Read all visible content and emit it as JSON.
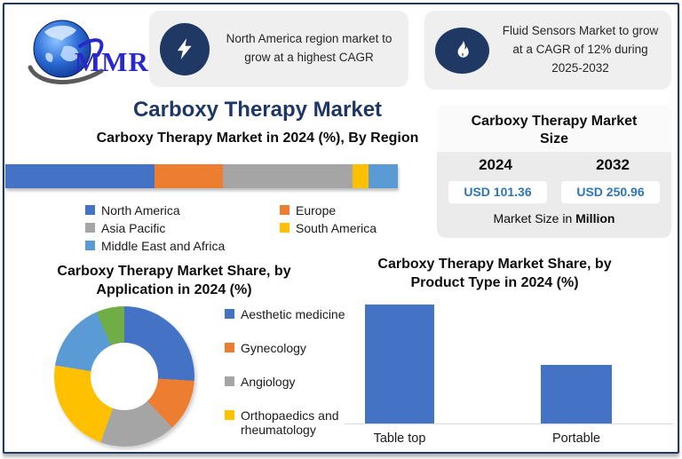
{
  "brand": {
    "logo_text": "MMR"
  },
  "callouts": [
    {
      "icon": "lightning-icon",
      "text": "North America region market to grow at a highest CAGR"
    },
    {
      "icon": "flame-icon",
      "text": "Fluid Sensors Market to grow at a CAGR of 12% during 2025-2032"
    }
  ],
  "page_title": "Carboxy Therapy Market",
  "market_size_card": {
    "title": "Carboxy Therapy Market Size",
    "columns": [
      {
        "year": "2024",
        "value": "USD 101.36"
      },
      {
        "year": "2032",
        "value": "USD 250.96"
      }
    ],
    "footnote_prefix": "Market Size in ",
    "footnote_bold": "Million",
    "value_color": "#2E75B6"
  },
  "chart_data": [
    {
      "type": "bar",
      "variant": "stacked-horizontal-100pct",
      "title": "Carboxy Therapy Market in 2024 (%), By Region",
      "categories": [
        "North America",
        "Europe",
        "Asia Pacific",
        "South America",
        "Middle East and Africa"
      ],
      "values": [
        38,
        17.5,
        33,
        4,
        7.5
      ],
      "colors": [
        "#4472C4",
        "#ED7D31",
        "#A5A5A5",
        "#FFC000",
        "#5B9BD5"
      ],
      "legend_position": "bottom",
      "axis": "none"
    },
    {
      "type": "pie",
      "variant": "donut",
      "title": "Carboxy Therapy Market Share, by Application in 2024 (%)",
      "slices": [
        {
          "label": "Aesthetic medicine",
          "value": 26,
          "color": "#4472C4"
        },
        {
          "label": "Gynecology",
          "value": 12,
          "color": "#ED7D31"
        },
        {
          "label": "Angiology",
          "value": 17.5,
          "color": "#A5A5A5"
        },
        {
          "label": "Orthopaedics and rheumatology",
          "value": 22,
          "color": "#FFC000"
        },
        {
          "label": null,
          "value": 16,
          "color": "#5B9BD5"
        },
        {
          "label": null,
          "value": 6.5,
          "color": "#70AD47"
        }
      ],
      "legend": [
        "Aesthetic medicine",
        "Gynecology",
        "Angiology",
        "Orthopaedics and rheumatology"
      ],
      "legend_position": "right",
      "start_angle_deg": 0
    },
    {
      "type": "bar",
      "title": "Carboxy Therapy  Market Share, by Product Type in 2024 (%)",
      "categories": [
        "Table top",
        "Portable"
      ],
      "values": [
        67,
        33
      ],
      "bar_color": "#4472C4",
      "xlabel": "",
      "ylabel": "",
      "ylim": [
        0,
        70
      ],
      "grid": false
    }
  ],
  "colors": {
    "frame_navy": "#1F3864",
    "title_navy": "#1F3766",
    "callout_bg": "#EFEFEF",
    "icon_navy": "#1F3864",
    "card_bg": "#EBEBEB",
    "value_blue": "#2E75B6",
    "axis_gray": "#D9D9D9",
    "logo_blue": "#2828CC"
  }
}
